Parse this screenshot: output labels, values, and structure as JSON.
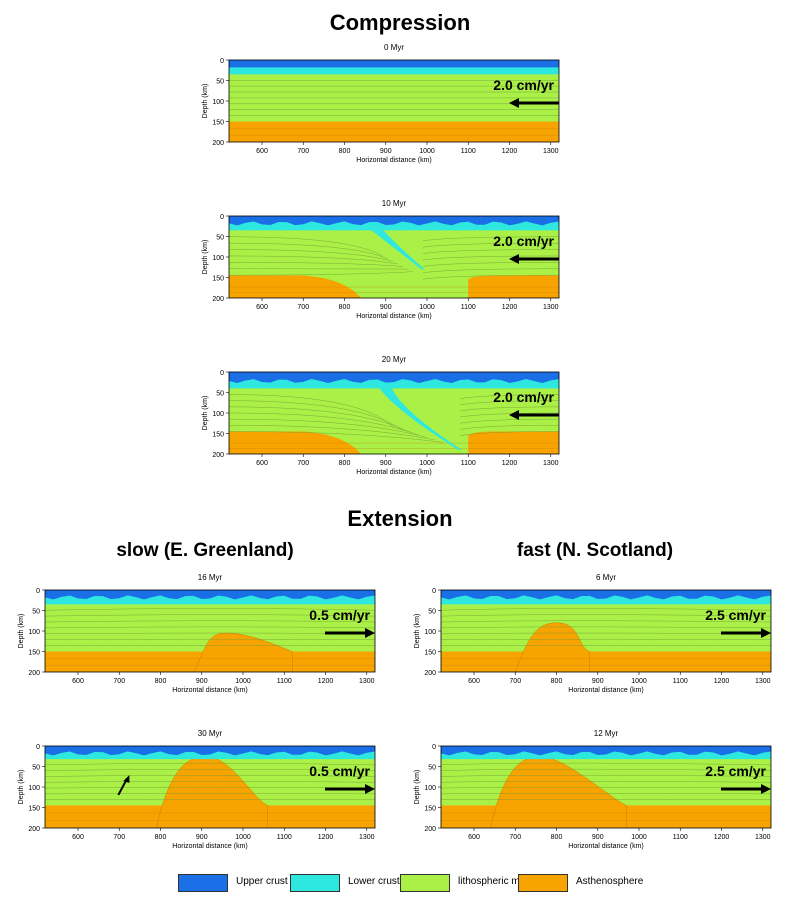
{
  "headings": {
    "compression": "Compression",
    "extension": "Extension",
    "slow": "slow (E. Greenland)",
    "fast": "fast (N. Scotland)"
  },
  "colors": {
    "upper_crust": "#1a6ee6",
    "lower_crust": "#2ee8e0",
    "lithospheric_mantle": "#aaf046",
    "asthenosphere": "#f7a400",
    "flowline": "#6f9a3a"
  },
  "legend": [
    {
      "label": "Upper crust",
      "color": "#1a6ee6"
    },
    {
      "label": "Lower crust",
      "color": "#2ee8e0"
    },
    {
      "label": "lithospheric mantle",
      "color": "#aaf046"
    },
    {
      "label": "Asthenosphere",
      "color": "#f7a400"
    }
  ],
  "chart_data": [
    {
      "type": "area",
      "title": "0 Myr",
      "mode": "compression",
      "xlabel": "Horizontal distance (km)",
      "ylabel": "Depth (km)",
      "xlim": [
        520,
        1320
      ],
      "ylim": [
        200,
        0
      ],
      "xticks": [
        600,
        700,
        800,
        900,
        1000,
        1100,
        1200,
        1300
      ],
      "yticks": [
        0,
        50,
        100,
        150,
        200
      ],
      "velocity_label": "2.0 cm/yr",
      "arrow_direction": "left",
      "layer_bases_km": {
        "upper_crust": 18,
        "lower_crust": 35,
        "lithospheric_mantle": 150
      },
      "slab": null,
      "upwelling": null
    },
    {
      "type": "area",
      "title": "10 Myr",
      "mode": "compression",
      "xlabel": "Horizontal distance (km)",
      "ylabel": "Depth (km)",
      "xlim": [
        520,
        1320
      ],
      "ylim": [
        200,
        0
      ],
      "xticks": [
        600,
        700,
        800,
        900,
        1000,
        1100,
        1200,
        1300
      ],
      "yticks": [
        0,
        50,
        100,
        150,
        200
      ],
      "velocity_label": "2.0 cm/yr",
      "arrow_direction": "left",
      "layer_bases_km": {
        "upper_crust": 18,
        "lower_crust": 35,
        "lithospheric_mantle": 160
      },
      "slab": {
        "top_x_km": 880,
        "bottom_x_km": 990,
        "bottom_depth_km": 130
      },
      "asth_left_ramp_km": [
        700,
        840
      ],
      "asth_right_rise_km": 1100,
      "upwelling": null
    },
    {
      "type": "area",
      "title": "20 Myr",
      "mode": "compression",
      "xlabel": "Horizontal distance (km)",
      "ylabel": "Depth (km)",
      "xlim": [
        520,
        1320
      ],
      "ylim": [
        200,
        0
      ],
      "xticks": [
        600,
        700,
        800,
        900,
        1000,
        1100,
        1200,
        1300
      ],
      "yticks": [
        0,
        50,
        100,
        150,
        200
      ],
      "velocity_label": "2.0 cm/yr",
      "arrow_direction": "left",
      "layer_bases_km": {
        "upper_crust": 22,
        "lower_crust": 40,
        "lithospheric_mantle": 160
      },
      "slab": {
        "top_x_km": 900,
        "bottom_x_km": 1080,
        "bottom_depth_km": 190
      },
      "asth_left_ramp_km": [
        700,
        840
      ],
      "asth_right_rise_km": 1100,
      "upwelling": null
    },
    {
      "type": "area",
      "title": "16 Myr",
      "mode": "extension",
      "xlabel": "Horizontal distance (km)",
      "ylabel": "Depth (km)",
      "xlim": [
        520,
        1320
      ],
      "ylim": [
        200,
        0
      ],
      "xticks": [
        600,
        700,
        800,
        900,
        1000,
        1100,
        1200,
        1300
      ],
      "yticks": [
        0,
        50,
        100,
        150,
        200
      ],
      "velocity_label": "0.5 cm/yr",
      "arrow_direction": "right",
      "layer_bases_km": {
        "upper_crust": 18,
        "lower_crust": 35,
        "lithospheric_mantle": 150
      },
      "slab": null,
      "upwelling": {
        "left_km": 880,
        "right_km": 1120,
        "top_depth_km": 105,
        "crest_x_km": 960
      }
    },
    {
      "type": "area",
      "title": "6 Myr",
      "mode": "extension",
      "xlabel": "Horizontal distance (km)",
      "ylabel": "Depth (km)",
      "xlim": [
        520,
        1320
      ],
      "ylim": [
        200,
        0
      ],
      "xticks": [
        600,
        700,
        800,
        900,
        1000,
        1100,
        1200,
        1300
      ],
      "yticks": [
        0,
        50,
        100,
        150,
        200
      ],
      "velocity_label": "2.5 cm/yr",
      "arrow_direction": "right",
      "layer_bases_km": {
        "upper_crust": 18,
        "lower_crust": 35,
        "lithospheric_mantle": 150
      },
      "slab": null,
      "upwelling": {
        "left_km": 700,
        "right_km": 880,
        "top_depth_km": 80,
        "crest_x_km": 800
      }
    },
    {
      "type": "area",
      "title": "30 Myr",
      "mode": "extension",
      "xlabel": "Horizontal distance (km)",
      "ylabel": "Depth (km)",
      "xlim": [
        520,
        1320
      ],
      "ylim": [
        200,
        0
      ],
      "xticks": [
        600,
        700,
        800,
        900,
        1000,
        1100,
        1200,
        1300
      ],
      "yticks": [
        0,
        50,
        100,
        150,
        200
      ],
      "velocity_label": "0.5 cm/yr",
      "arrow_direction": "right",
      "layer_bases_km": {
        "upper_crust": 18,
        "lower_crust": 32,
        "lithospheric_mantle": 145
      },
      "slab": null,
      "upwelling": {
        "left_km": 790,
        "right_km": 1060,
        "top_depth_km": 25,
        "crest_x_km": 910
      },
      "annotation_arrow_km": [
        710,
        95
      ]
    },
    {
      "type": "area",
      "title": "12 Myr",
      "mode": "extension",
      "xlabel": "Horizontal distance (km)",
      "ylabel": "Depth (km)",
      "xlim": [
        520,
        1320
      ],
      "ylim": [
        200,
        0
      ],
      "xticks": [
        600,
        700,
        800,
        900,
        1000,
        1100,
        1200,
        1300
      ],
      "yticks": [
        0,
        50,
        100,
        150,
        200
      ],
      "velocity_label": "2.5 cm/yr",
      "arrow_direction": "right",
      "layer_bases_km": {
        "upper_crust": 18,
        "lower_crust": 32,
        "lithospheric_mantle": 145
      },
      "slab": null,
      "upwelling": {
        "left_km": 640,
        "right_km": 970,
        "top_depth_km": 25,
        "crest_x_km": 760
      }
    }
  ]
}
